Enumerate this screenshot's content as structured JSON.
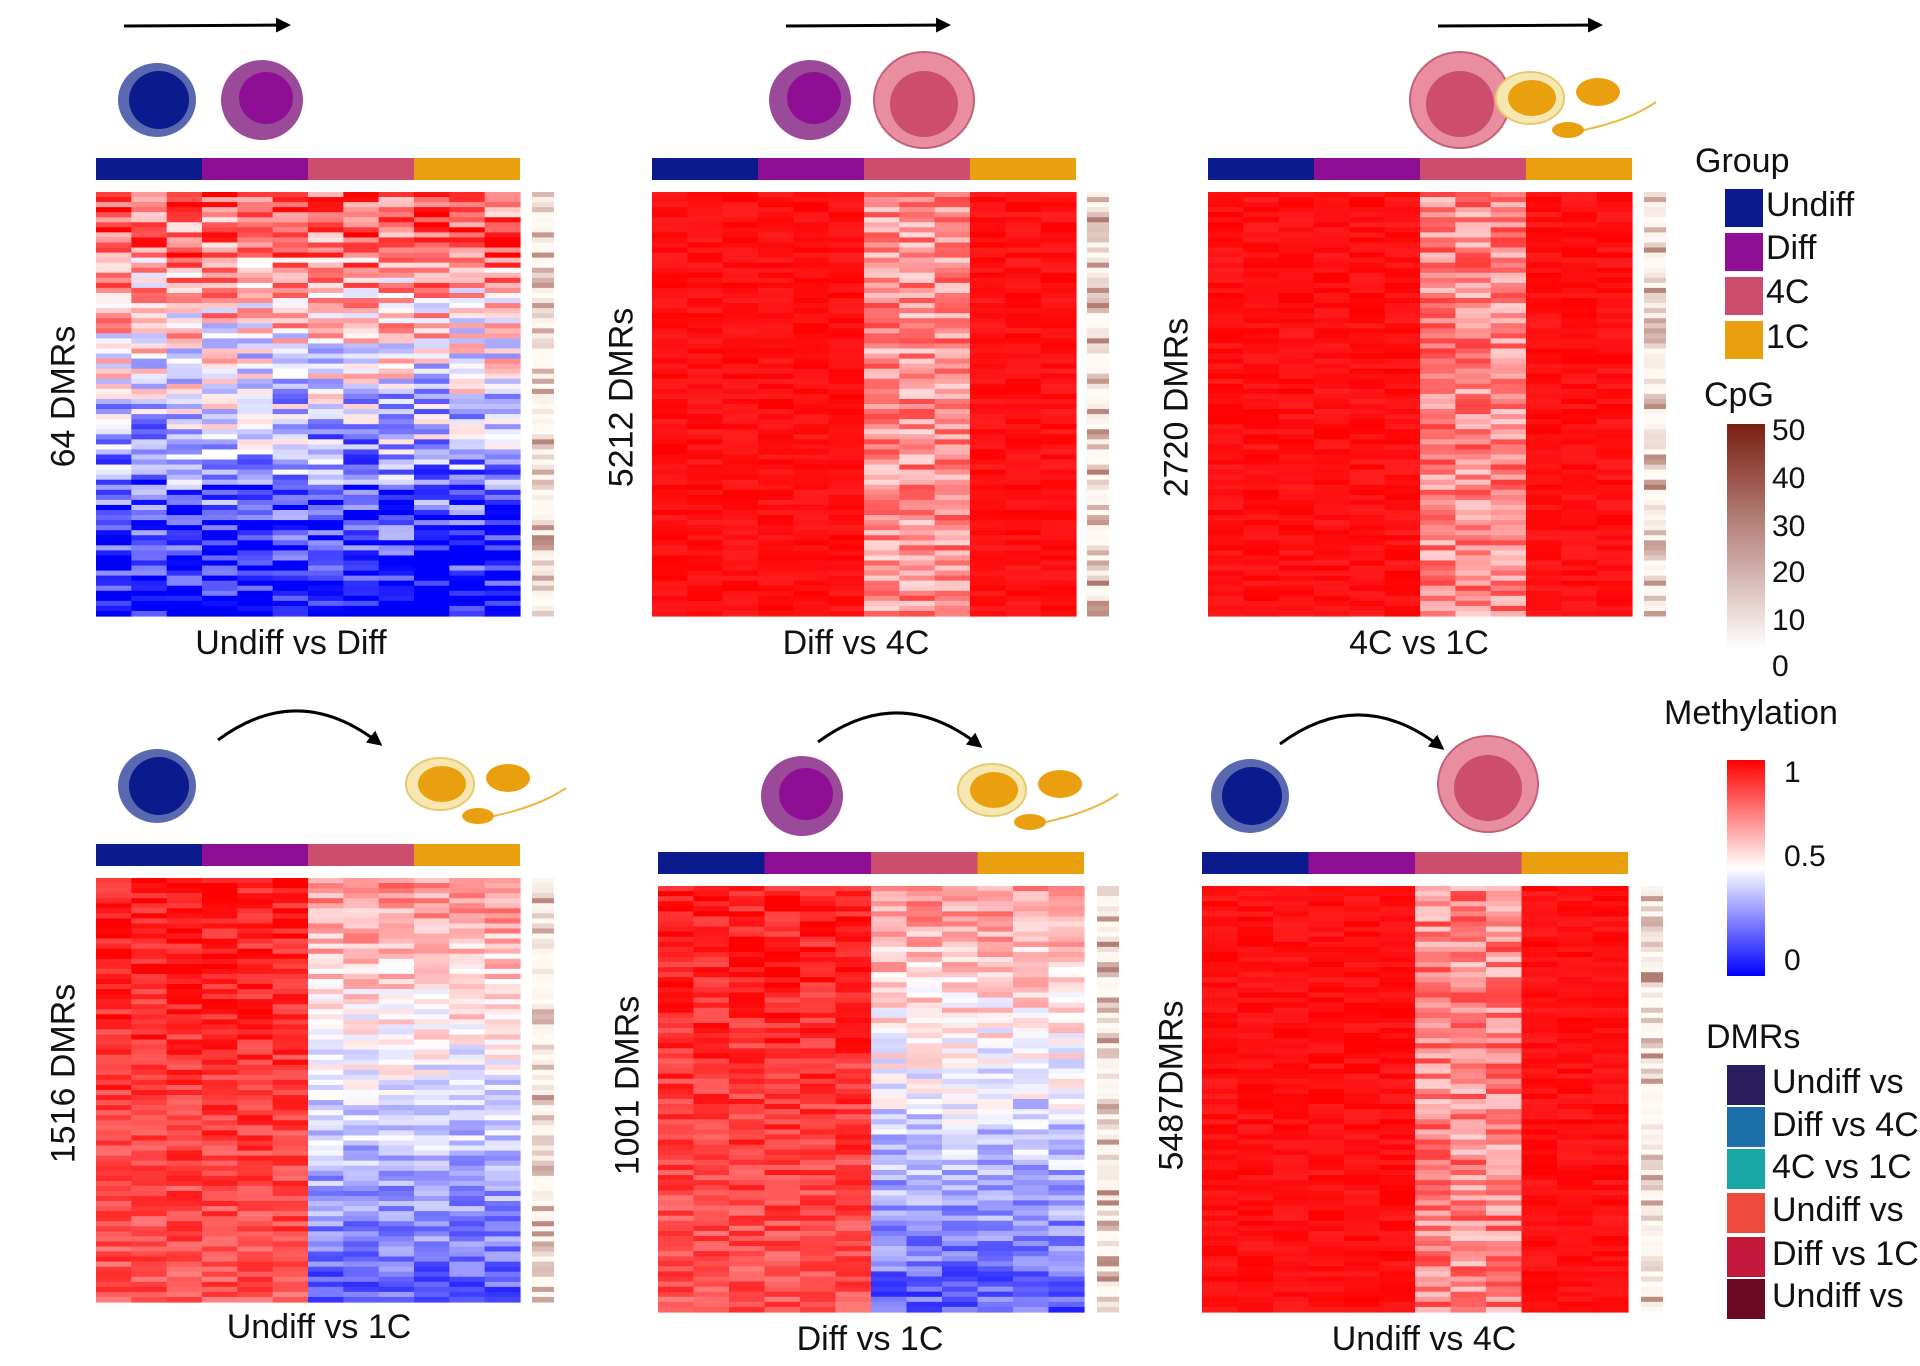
{
  "chart_data": [
    {
      "type": "heatmap",
      "id": "p1",
      "title": "Undiff vs Diff",
      "ylabel": "64 DMRs",
      "dmr_count": 64,
      "transition": [
        "Undiff",
        "Diff"
      ],
      "column_groups": [
        "Undiff",
        "Diff",
        "4C",
        "1C"
      ],
      "replicates_per_group": 3,
      "value_range": [
        0,
        1
      ],
      "pattern": "mixed: high methylation at top rows, low (blue) methylation in lower rows across all groups"
    },
    {
      "type": "heatmap",
      "id": "p2",
      "title": "Diff vs 4C",
      "ylabel": "5212 DMRs",
      "dmr_count": 5212,
      "transition": [
        "Diff",
        "4C"
      ],
      "column_groups": [
        "Undiff",
        "Diff",
        "4C",
        "1C"
      ],
      "replicates_per_group": 3,
      "value_range": [
        0,
        1
      ],
      "pattern": "high methylation in Undiff, Diff and 1C; reduced methylation in 4C"
    },
    {
      "type": "heatmap",
      "id": "p3",
      "title": "4C vs 1C",
      "ylabel": "2720 DMRs",
      "dmr_count": 2720,
      "transition": [
        "4C",
        "1C"
      ],
      "column_groups": [
        "Undiff",
        "Diff",
        "4C",
        "1C"
      ],
      "replicates_per_group": 3,
      "value_range": [
        0,
        1
      ],
      "pattern": "high methylation in Undiff, Diff and 1C; reduced methylation in 4C"
    },
    {
      "type": "heatmap",
      "id": "p4",
      "title": "Undiff vs 1C",
      "ylabel": "1516 DMRs",
      "dmr_count": 1516,
      "transition": [
        "Undiff",
        "1C"
      ],
      "column_groups": [
        "Undiff",
        "Diff",
        "4C",
        "1C"
      ],
      "replicates_per_group": 3,
      "value_range": [
        0,
        1
      ],
      "pattern": "high methylation in Undiff and Diff; low methylation in 4C and 1C"
    },
    {
      "type": "heatmap",
      "id": "p5",
      "title": "Diff vs 1C",
      "ylabel": "1001 DMRs",
      "dmr_count": 1001,
      "transition": [
        "Diff",
        "1C"
      ],
      "column_groups": [
        "Undiff",
        "Diff",
        "4C",
        "1C"
      ],
      "replicates_per_group": 3,
      "value_range": [
        0,
        1
      ],
      "pattern": "high methylation in Undiff and Diff; low methylation in 4C and 1C"
    },
    {
      "type": "heatmap",
      "id": "p6",
      "title": "Undiff vs 4C",
      "ylabel": "5487DMRs",
      "dmr_count": 5487,
      "transition": [
        "Undiff",
        "4C"
      ],
      "column_groups": [
        "Undiff",
        "Diff",
        "4C",
        "1C"
      ],
      "replicates_per_group": 3,
      "value_range": [
        0,
        1
      ],
      "pattern": "high methylation in Undiff, Diff and 1C; reduced methylation in 4C"
    }
  ],
  "legend": {
    "group": {
      "title": "Group",
      "items": [
        {
          "label": "Undiff",
          "color": "#0b1a8c"
        },
        {
          "label": "Diff",
          "color": "#8e0f93"
        },
        {
          "label": "4C",
          "color": "#cc4d6e"
        },
        {
          "label": "1C",
          "color": "#eaa00e"
        }
      ]
    },
    "cpg": {
      "title": "CpG",
      "ticks": [
        "50",
        "40",
        "30",
        "20",
        "10",
        "0"
      ],
      "range": [
        0,
        50
      ],
      "colors": [
        "#ffffff",
        "#7a1f12"
      ]
    },
    "methylation": {
      "title": "Methylation",
      "ticks": [
        "1",
        "0.5",
        "0"
      ],
      "range": [
        0,
        1
      ],
      "colors": [
        "#0000ff",
        "#ffffff",
        "#ff0000"
      ]
    },
    "dmrs": {
      "title": "DMRs",
      "items": [
        {
          "label": "Undiff vs",
          "color": "#2a1d5e"
        },
        {
          "label": "Diff vs 4C",
          "color": "#1c6fa8"
        },
        {
          "label": "4C vs 1C",
          "color": "#18a8a5"
        },
        {
          "label": "Undiff vs",
          "color": "#ee4a3e"
        },
        {
          "label": "Diff vs 1C",
          "color": "#c2183a"
        },
        {
          "label": "Undiff vs",
          "color": "#6a0a24"
        }
      ]
    }
  },
  "colors": {
    "undiff_cell_outer": "#5a68b0",
    "undiff_cell_inner": "#0b1a8c",
    "diff_cell_outer": "#9b4a9a",
    "diff_cell_inner": "#8e0f93",
    "c4_cell_outer": "#e98ea0",
    "c4_cell_inner": "#cc4d6e",
    "c1_outer": "#f6e7b0",
    "c1_inner": "#eaa00e"
  }
}
